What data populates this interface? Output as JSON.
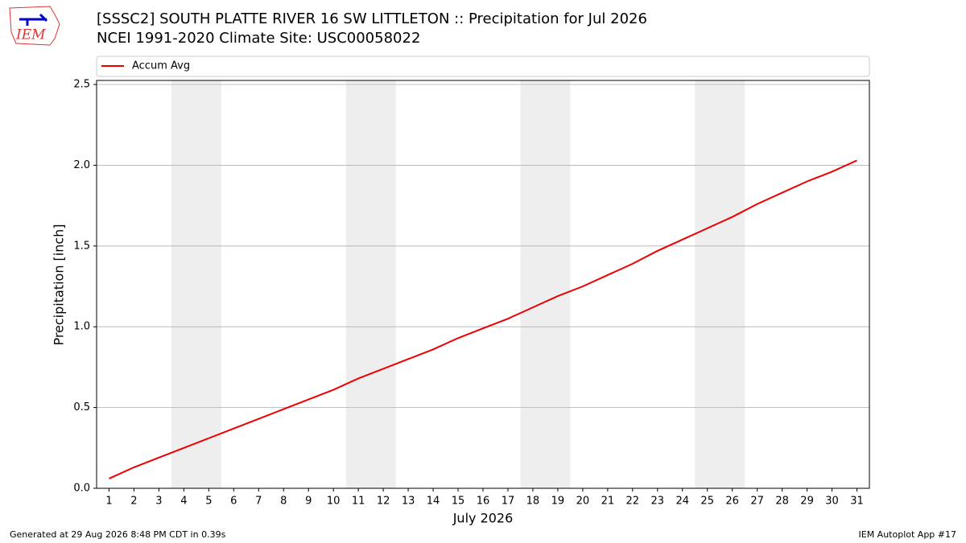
{
  "logo": {
    "text": "IEM"
  },
  "footer": {
    "left": "Generated at 29 Aug 2026 8:48 PM CDT in 0.39s",
    "right": "IEM Autoplot App #17"
  },
  "chart_data": {
    "type": "line",
    "title": "[SSSC2] SOUTH PLATTE RIVER 16 SW LITTLETON :: Precipitation for Jul 2026",
    "subtitle": "NCEI 1991-2020 Climate Site: USC00058022",
    "xlabel": "July 2026",
    "ylabel": "Precipitation [inch]",
    "x": [
      1,
      2,
      3,
      4,
      5,
      6,
      7,
      8,
      9,
      10,
      11,
      12,
      13,
      14,
      15,
      16,
      17,
      18,
      19,
      20,
      21,
      22,
      23,
      24,
      25,
      26,
      27,
      28,
      29,
      30,
      31
    ],
    "series": [
      {
        "name": "Accum Avg",
        "color": "#ee0000",
        "values": [
          0.06,
          0.13,
          0.19,
          0.25,
          0.31,
          0.37,
          0.43,
          0.49,
          0.55,
          0.61,
          0.68,
          0.74,
          0.8,
          0.86,
          0.93,
          0.99,
          1.05,
          1.12,
          1.19,
          1.25,
          1.32,
          1.39,
          1.47,
          1.54,
          1.61,
          1.68,
          1.76,
          1.83,
          1.9,
          1.96,
          2.03
        ]
      }
    ],
    "weekend_spans": [
      [
        3.5,
        5.5
      ],
      [
        10.5,
        12.5
      ],
      [
        17.5,
        19.5
      ],
      [
        24.5,
        26.5
      ]
    ],
    "span_color": "#eeeeee",
    "xlim": [
      0.5,
      31.5
    ],
    "ylim": [
      0,
      2.525
    ],
    "xticks": [
      1,
      2,
      3,
      4,
      5,
      6,
      7,
      8,
      9,
      10,
      11,
      12,
      13,
      14,
      15,
      16,
      17,
      18,
      19,
      20,
      21,
      22,
      23,
      24,
      25,
      26,
      27,
      28,
      29,
      30,
      31
    ],
    "yticks": [
      {
        "value": 0,
        "label": "0.0"
      },
      {
        "value": 0.5,
        "label": "0.5"
      },
      {
        "value": 1,
        "label": "1.0"
      },
      {
        "value": 1.5,
        "label": "1.5"
      },
      {
        "value": 2,
        "label": "2.0"
      },
      {
        "value": 2.5,
        "label": "2.5"
      }
    ],
    "grid": true,
    "legend": "top"
  }
}
